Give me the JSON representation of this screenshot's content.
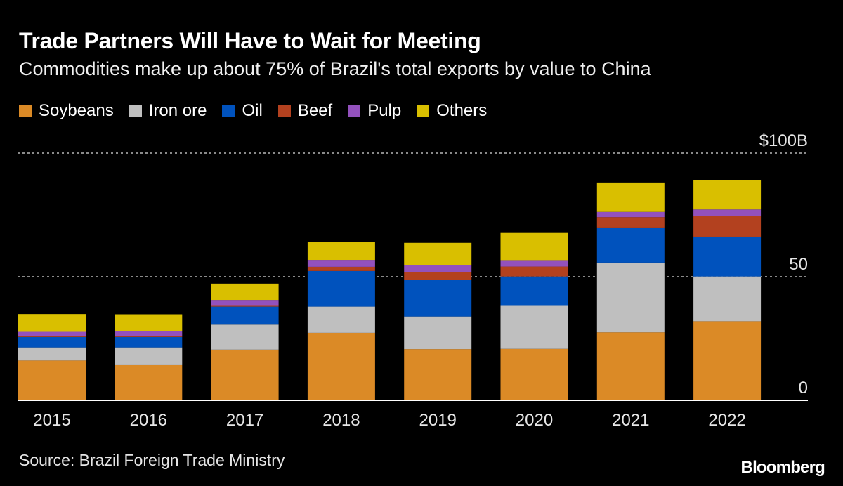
{
  "chart_data": {
    "type": "bar",
    "stacked": true,
    "title": "Trade Partners Will Have to Wait for Meeting",
    "subtitle": "Commodities make up about 75% of Brazil's total exports by value to China",
    "categories": [
      "2015",
      "2016",
      "2017",
      "2018",
      "2019",
      "2020",
      "2021",
      "2022"
    ],
    "series": [
      {
        "name": "Soybeans",
        "color": "#db8a26",
        "values": [
          16.1,
          14.5,
          20.5,
          27.3,
          20.7,
          20.8,
          27.5,
          32.0
        ]
      },
      {
        "name": "Iron ore",
        "color": "#bfbfbf",
        "values": [
          5.3,
          6.9,
          10.1,
          10.6,
          13.2,
          17.7,
          28.2,
          18.1
        ]
      },
      {
        "name": "Oil",
        "color": "#0052bd",
        "values": [
          4.2,
          4.2,
          7.3,
          14.4,
          14.9,
          11.6,
          14.2,
          16.1
        ]
      },
      {
        "name": "Beef",
        "color": "#b3411f",
        "values": [
          0.5,
          0.4,
          0.6,
          1.7,
          3.0,
          4.0,
          4.2,
          8.4
        ]
      },
      {
        "name": "Pulp",
        "color": "#9351bd",
        "values": [
          1.6,
          2.1,
          2.1,
          2.8,
          3.0,
          2.6,
          2.1,
          2.6
        ]
      },
      {
        "name": "Others",
        "color": "#d9bf00",
        "values": [
          7.2,
          6.7,
          6.6,
          7.4,
          8.9,
          11.0,
          11.9,
          11.9
        ]
      }
    ],
    "ylim": [
      0,
      100
    ],
    "yticks": [
      {
        "value": 100,
        "label": "$100B"
      },
      {
        "value": 50,
        "label": "50"
      },
      {
        "value": 0,
        "label": "0"
      }
    ],
    "grid": true,
    "legend_position": "top-left"
  },
  "source": "Source: Brazil Foreign Trade Ministry",
  "logo": "Bloomberg"
}
